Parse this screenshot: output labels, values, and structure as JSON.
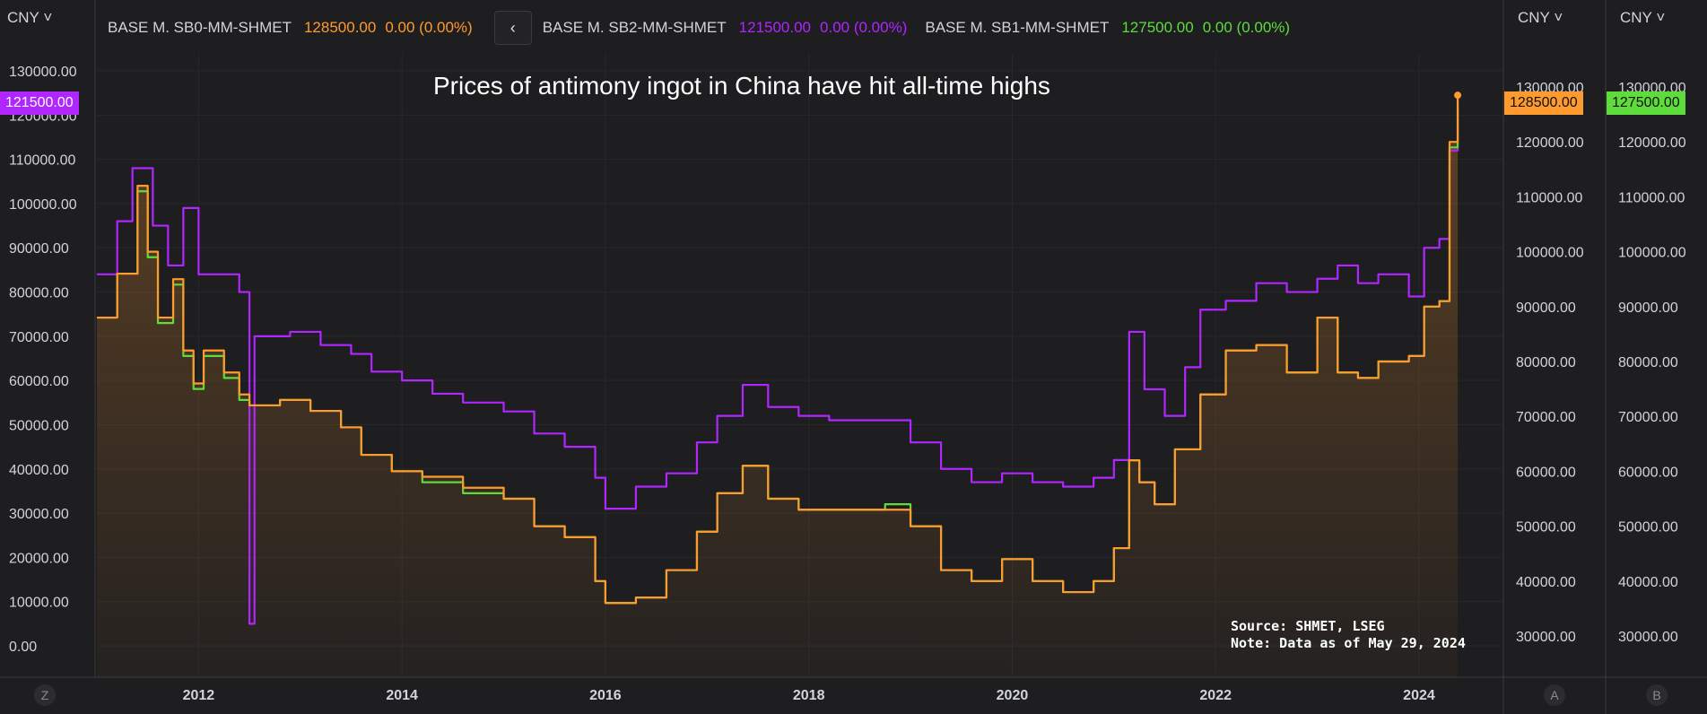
{
  "header": {
    "currency": "CNY",
    "currency_right_a": "CNY",
    "currency_right_b": "CNY",
    "nav_icon": "chevron-left-icon",
    "series_legend": [
      {
        "name": "BASE M. SB0-MM-SHMET",
        "price": "128500.00",
        "change": "0.00 (0.00%)",
        "color": "#ff9a2e"
      },
      {
        "name": "BASE M. SB2-MM-SHMET",
        "price": "121500.00",
        "change": "0.00 (0.00%)",
        "color": "#b026ff"
      },
      {
        "name": "BASE M. SB1-MM-SHMET",
        "price": "127500.00",
        "change": "0.00 (0.00%)",
        "color": "#5ddc3c"
      }
    ]
  },
  "badges": {
    "left": {
      "text": "121500.00",
      "color": "#b026ff"
    },
    "right_a": {
      "text": "128500.00",
      "color": "#ff9a2e"
    },
    "right_b": {
      "text": "127500.00",
      "color": "#5ddc3c"
    }
  },
  "footer": {
    "left_button": "Z",
    "right_a_button": "A",
    "right_b_button": "B"
  },
  "chart_data": {
    "type": "line",
    "title": "Prices of antimony ingot in China have hit all-time highs",
    "annotation": [
      "Source: SHMET, LSEG",
      "Note: Data as of May 29, 2024"
    ],
    "x_ticks": [
      "2012",
      "2014",
      "2016",
      "2018",
      "2020",
      "2022",
      "2024"
    ],
    "left_axis": {
      "ticks": [
        "130000.00",
        "120000.00",
        "110000.00",
        "100000.00",
        "90000.00",
        "80000.00",
        "70000.00",
        "60000.00",
        "50000.00",
        "40000.00",
        "30000.00",
        "20000.00",
        "10000.00",
        "0.00"
      ],
      "ylim": [
        0,
        130000
      ]
    },
    "right_axis_a": {
      "ticks": [
        "130000.00",
        "120000.00",
        "110000.00",
        "100000.00",
        "90000.00",
        "80000.00",
        "70000.00",
        "60000.00",
        "50000.00",
        "40000.00",
        "30000.00"
      ],
      "ylim": [
        30000,
        130000
      ]
    },
    "right_axis_b": {
      "ticks": [
        "130000.00",
        "120000.00",
        "110000.00",
        "100000.00",
        "90000.00",
        "80000.00",
        "70000.00",
        "60000.00",
        "50000.00",
        "40000.00",
        "30000.00"
      ],
      "ylim": [
        30000,
        130000
      ]
    },
    "xlim": [
      2011.0,
      2024.6
    ],
    "series": [
      {
        "name": "BASE M. SB0-MM-SHMET",
        "color": "#ff9a2e",
        "axis": "right_a",
        "x": [
          2011.0,
          2011.2,
          2011.4,
          2011.5,
          2011.6,
          2011.75,
          2011.85,
          2011.95,
          2012.05,
          2012.25,
          2012.4,
          2012.5,
          2012.6,
          2012.8,
          2013.1,
          2013.4,
          2013.6,
          2013.9,
          2014.2,
          2014.6,
          2015.0,
          2015.3,
          2015.6,
          2015.9,
          2016.0,
          2016.3,
          2016.6,
          2016.9,
          2017.1,
          2017.35,
          2017.6,
          2017.9,
          2018.2,
          2018.5,
          2018.75,
          2019.0,
          2019.3,
          2019.6,
          2019.9,
          2020.2,
          2020.5,
          2020.8,
          2021.0,
          2021.15,
          2021.25,
          2021.4,
          2021.6,
          2021.85,
          2022.1,
          2022.4,
          2022.7,
          2023.0,
          2023.2,
          2023.4,
          2023.6,
          2023.9,
          2024.05,
          2024.2,
          2024.3,
          2024.38
        ],
        "y": [
          88000,
          96000,
          112000,
          100000,
          88000,
          95000,
          82000,
          76000,
          82000,
          78000,
          74000,
          72000,
          72000,
          73000,
          71000,
          68000,
          63000,
          60000,
          59000,
          57000,
          55000,
          50000,
          48000,
          40000,
          36000,
          37000,
          42000,
          49000,
          56000,
          61000,
          55000,
          53000,
          53000,
          53000,
          53000,
          50000,
          42000,
          40000,
          44000,
          40000,
          38000,
          40000,
          46000,
          62000,
          58000,
          54000,
          64000,
          74000,
          82000,
          83000,
          78000,
          88000,
          78000,
          77000,
          80000,
          81000,
          90000,
          91000,
          120000,
          128500
        ]
      },
      {
        "name": "BASE M. SB2-MM-SHMET",
        "color": "#b026ff",
        "axis": "left",
        "x": [
          2011.0,
          2011.2,
          2011.35,
          2011.55,
          2011.7,
          2011.85,
          2012.0,
          2012.2,
          2012.4,
          2012.5,
          2012.5,
          2012.55,
          2012.7,
          2012.9,
          2013.2,
          2013.5,
          2013.7,
          2014.0,
          2014.3,
          2014.6,
          2015.0,
          2015.3,
          2015.6,
          2015.9,
          2016.0,
          2016.3,
          2016.6,
          2016.9,
          2017.1,
          2017.35,
          2017.6,
          2017.9,
          2018.2,
          2018.5,
          2018.75,
          2019.0,
          2019.3,
          2019.6,
          2019.9,
          2020.2,
          2020.5,
          2020.8,
          2021.0,
          2021.15,
          2021.3,
          2021.5,
          2021.7,
          2021.85,
          2022.1,
          2022.4,
          2022.7,
          2023.0,
          2023.2,
          2023.4,
          2023.6,
          2023.9,
          2024.05,
          2024.2,
          2024.3,
          2024.38
        ],
        "y": [
          84000,
          96000,
          108000,
          95000,
          86000,
          99000,
          84000,
          84000,
          80000,
          77000,
          5000,
          70000,
          70000,
          71000,
          68000,
          66000,
          62000,
          60000,
          57000,
          55000,
          53000,
          48000,
          45000,
          38000,
          31000,
          36000,
          39000,
          46000,
          52000,
          59000,
          54000,
          52000,
          51000,
          51000,
          51000,
          46000,
          40000,
          37000,
          39000,
          37000,
          36000,
          38000,
          42000,
          71000,
          58000,
          52000,
          63000,
          76000,
          78000,
          82000,
          80000,
          83000,
          86000,
          82000,
          84000,
          79000,
          90000,
          92000,
          112000,
          121500
        ]
      },
      {
        "name": "BASE M. SB1-MM-SHMET",
        "color": "#5ddc3c",
        "axis": "right_b",
        "x": [
          2011.0,
          2011.2,
          2011.4,
          2011.5,
          2011.6,
          2011.75,
          2011.85,
          2011.95,
          2012.05,
          2012.25,
          2012.4,
          2012.5,
          2012.6,
          2012.8,
          2013.1,
          2013.4,
          2013.6,
          2013.9,
          2014.2,
          2014.6,
          2015.0,
          2015.3,
          2015.6,
          2015.9,
          2016.0,
          2016.3,
          2016.6,
          2016.9,
          2017.1,
          2017.35,
          2017.6,
          2017.9,
          2018.2,
          2018.5,
          2018.75,
          2019.0,
          2019.3,
          2019.6,
          2019.9,
          2020.2,
          2020.5,
          2020.8,
          2021.0,
          2021.15,
          2021.25,
          2021.4,
          2021.6,
          2021.85,
          2022.1,
          2022.4,
          2022.7,
          2023.0,
          2023.2,
          2023.4,
          2023.6,
          2023.9,
          2024.05,
          2024.2,
          2024.3,
          2024.38
        ],
        "y": [
          88000,
          96000,
          111000,
          99000,
          87000,
          94000,
          81000,
          75000,
          81000,
          77000,
          73000,
          72000,
          72000,
          73000,
          71000,
          68000,
          63000,
          60000,
          58000,
          56000,
          55000,
          50000,
          48000,
          40000,
          36000,
          37000,
          42000,
          49000,
          56000,
          61000,
          55000,
          53000,
          53000,
          53000,
          54000,
          50000,
          42000,
          40000,
          44000,
          40000,
          38000,
          40000,
          46000,
          62000,
          58000,
          54000,
          64000,
          74000,
          82000,
          83000,
          78000,
          88000,
          78000,
          77000,
          80000,
          81000,
          90000,
          91000,
          119000,
          127500
        ]
      }
    ]
  }
}
